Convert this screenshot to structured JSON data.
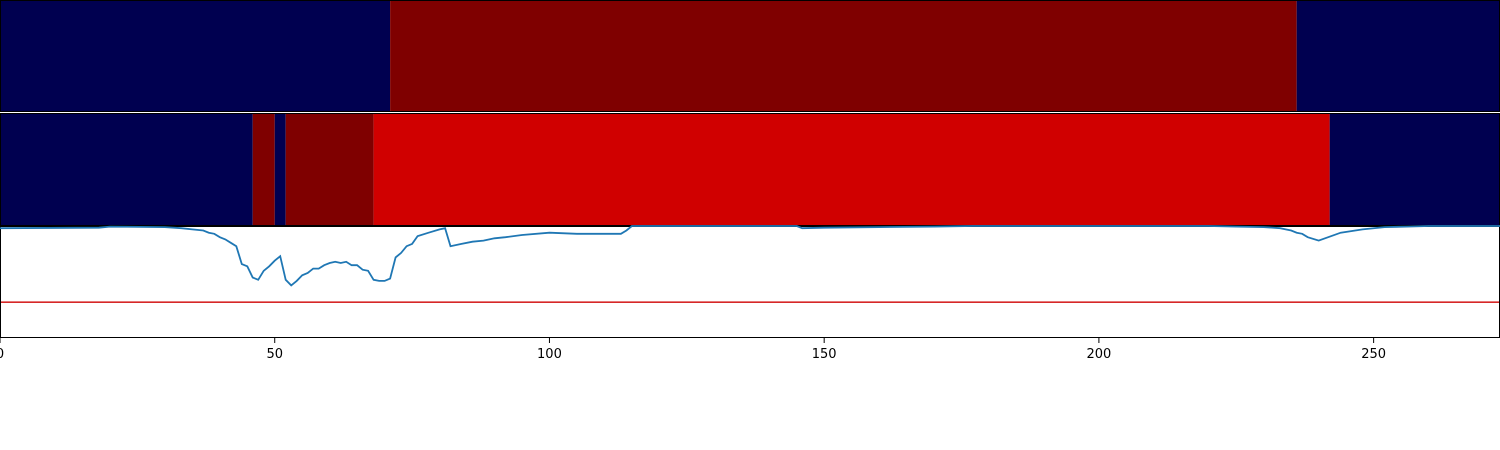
{
  "chart_data": {
    "type": "heatmap",
    "description_panels": [
      "segment track 1",
      "segment track 2",
      "score line"
    ],
    "xlim": [
      0,
      273
    ],
    "xticks": [
      0,
      50,
      100,
      150,
      200,
      250
    ],
    "xtick_labels": [
      "0",
      "50",
      "100",
      "150",
      "200",
      "250"
    ],
    "colors": {
      "navy": "#000050",
      "dark_red": "#7f0000",
      "red": "#d00000",
      "line": "#1f77b4",
      "threshold": "#d62728"
    },
    "track1": [
      {
        "start": 0,
        "end": 71,
        "color": "navy"
      },
      {
        "start": 71,
        "end": 236,
        "color": "dark_red"
      },
      {
        "start": 236,
        "end": 273,
        "color": "navy"
      }
    ],
    "track2": [
      {
        "start": 0,
        "end": 46,
        "color": "navy"
      },
      {
        "start": 46,
        "end": 50,
        "color": "dark_red"
      },
      {
        "start": 50,
        "end": 52,
        "color": "navy"
      },
      {
        "start": 52,
        "end": 68,
        "color": "dark_red"
      },
      {
        "start": 68,
        "end": 242,
        "color": "red"
      },
      {
        "start": 242,
        "end": 273,
        "color": "navy"
      }
    ],
    "line_ylim": [
      0,
      1
    ],
    "threshold": 0.32,
    "line_series": {
      "name": "score",
      "x": [
        0,
        18,
        20,
        30,
        33,
        35,
        37,
        38,
        39,
        40,
        41,
        42,
        43,
        44,
        45,
        46,
        47,
        48,
        49,
        50,
        51,
        52,
        53,
        54,
        55,
        56,
        57,
        58,
        59,
        60,
        61,
        62,
        63,
        64,
        65,
        66,
        67,
        68,
        69,
        70,
        71,
        72,
        73,
        74,
        75,
        76,
        78,
        80,
        81,
        82,
        84,
        86,
        88,
        90,
        92,
        95,
        100,
        105,
        110,
        113,
        114,
        115,
        120,
        130,
        140,
        145,
        146,
        150,
        160,
        170,
        177,
        178,
        180,
        200,
        220,
        225,
        230,
        233,
        234,
        235,
        236,
        237,
        238,
        240,
        244,
        248,
        252,
        256,
        260,
        273
      ],
      "y": [
        0.98,
        0.985,
        0.995,
        0.99,
        0.98,
        0.97,
        0.96,
        0.94,
        0.93,
        0.9,
        0.88,
        0.85,
        0.82,
        0.66,
        0.64,
        0.54,
        0.52,
        0.6,
        0.64,
        0.69,
        0.73,
        0.52,
        0.47,
        0.51,
        0.56,
        0.58,
        0.62,
        0.62,
        0.65,
        0.67,
        0.68,
        0.67,
        0.68,
        0.65,
        0.65,
        0.61,
        0.6,
        0.52,
        0.51,
        0.51,
        0.53,
        0.72,
        0.76,
        0.82,
        0.84,
        0.91,
        0.94,
        0.97,
        0.98,
        0.82,
        0.84,
        0.86,
        0.87,
        0.89,
        0.9,
        0.92,
        0.94,
        0.93,
        0.93,
        0.93,
        0.96,
        1.0,
        1.0,
        1.0,
        1.0,
        1.0,
        0.98,
        0.985,
        0.99,
        0.995,
        1.0,
        1.0,
        1.0,
        1.0,
        1.0,
        0.995,
        0.99,
        0.98,
        0.97,
        0.96,
        0.94,
        0.93,
        0.9,
        0.87,
        0.94,
        0.97,
        0.99,
        0.995,
        1.0,
        1.0
      ]
    }
  }
}
